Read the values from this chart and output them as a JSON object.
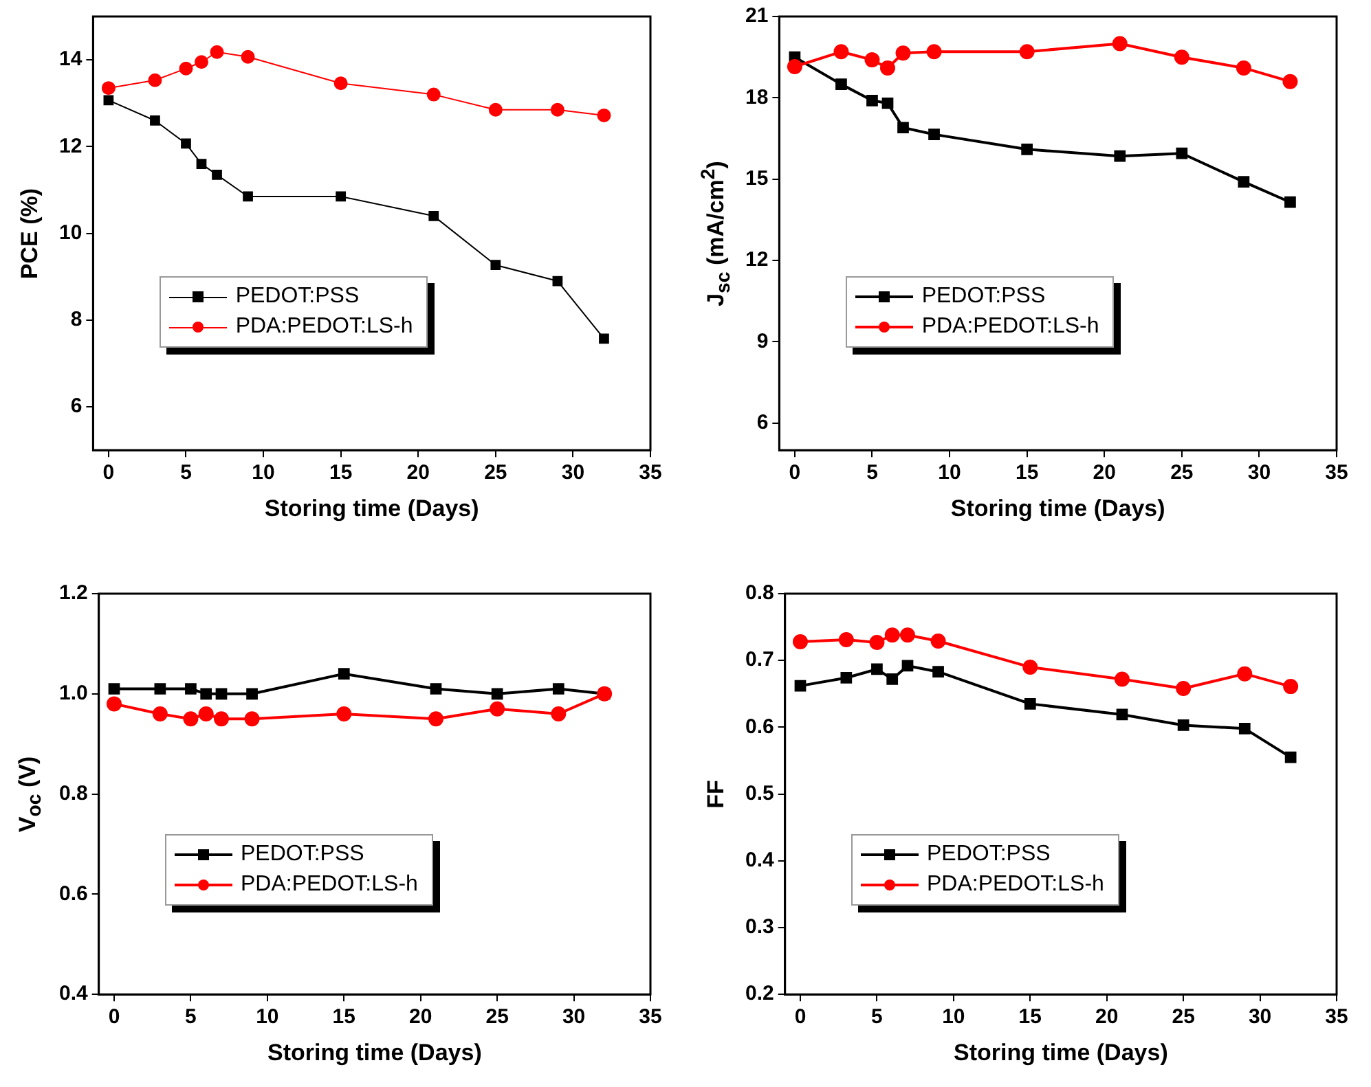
{
  "chart_data": [
    {
      "type": "line",
      "xlabel": "Storing time (Days)",
      "ylabel": "PCE (%)",
      "x": [
        0,
        3,
        5,
        6,
        7,
        9,
        15,
        21,
        25,
        29,
        32
      ],
      "xlim": [
        -1,
        35
      ],
      "xticks": [
        0,
        5,
        10,
        15,
        20,
        25,
        30,
        35
      ],
      "ylim": [
        5,
        15
      ],
      "yticks": [
        6,
        8,
        10,
        12,
        14
      ],
      "grid": false,
      "legend": "left",
      "series": [
        {
          "name": "PEDOT:PSS",
          "color": "#000000",
          "marker": "square",
          "values": [
            13.07,
            12.6,
            12.07,
            11.6,
            11.35,
            10.85,
            10.85,
            10.4,
            9.27,
            8.9,
            7.57
          ]
        },
        {
          "name": "PDA:PEDOT:LS-h",
          "color": "#ff0000",
          "marker": "circle",
          "values": [
            13.35,
            13.53,
            13.8,
            13.95,
            14.18,
            14.07,
            13.46,
            13.2,
            12.85,
            12.85,
            12.72
          ]
        }
      ]
    },
    {
      "type": "line",
      "xlabel": "Storing time (Days)",
      "ylabel": "J$_{sc}$ (mA/cm$^{2}$)",
      "x": [
        0,
        3,
        5,
        6,
        7,
        9,
        15,
        21,
        25,
        29,
        32
      ],
      "xlim": [
        -1,
        35
      ],
      "xticks": [
        0,
        5,
        10,
        15,
        20,
        25,
        30,
        35
      ],
      "ylim": [
        5,
        21
      ],
      "yticks": [
        6,
        9,
        12,
        15,
        18,
        21
      ],
      "grid": false,
      "legend": "left",
      "series": [
        {
          "name": "PEDOT:PSS",
          "color": "#000000",
          "marker": "square",
          "values": [
            19.5,
            18.5,
            17.9,
            17.8,
            16.9,
            16.65,
            16.1,
            15.85,
            15.95,
            14.9,
            14.15
          ]
        },
        {
          "name": "PDA:PEDOT:LS-h",
          "color": "#ff0000",
          "marker": "circle",
          "values": [
            19.15,
            19.7,
            19.4,
            19.1,
            19.65,
            19.7,
            19.7,
            20.0,
            19.5,
            19.1,
            18.6
          ]
        }
      ]
    },
    {
      "type": "line",
      "xlabel": "Storing time (Days)",
      "ylabel": "V$_{oc}$ (V)",
      "x": [
        0,
        3,
        5,
        6,
        7,
        9,
        15,
        21,
        25,
        29,
        32
      ],
      "xlim": [
        -1,
        35
      ],
      "xticks": [
        0,
        5,
        10,
        15,
        20,
        25,
        30,
        35
      ],
      "ylim": [
        0.4,
        1.2
      ],
      "yticks": [
        {
          "value": 0.4,
          "label": "0.4"
        },
        {
          "value": 0.6,
          "label": "0.6"
        },
        {
          "value": 0.8,
          "label": "0.8"
        },
        {
          "value": 1.0,
          "label": "1.0"
        },
        {
          "value": 1.2,
          "label": "1.2"
        }
      ],
      "grid": false,
      "legend": "left",
      "series": [
        {
          "name": "PEDOT:PSS",
          "color": "#000000",
          "marker": "square",
          "values": [
            1.01,
            1.01,
            1.01,
            1.0,
            1.0,
            1.0,
            1.04,
            1.01,
            1.0,
            1.01,
            1.0
          ]
        },
        {
          "name": "PDA:PEDOT:LS-h",
          "color": "#ff0000",
          "marker": "circle",
          "values": [
            0.98,
            0.96,
            0.95,
            0.96,
            0.95,
            0.95,
            0.96,
            0.95,
            0.97,
            0.96,
            1.0
          ]
        }
      ]
    },
    {
      "type": "line",
      "xlabel": "Storing time (Days)",
      "ylabel": "FF",
      "x": [
        0,
        3,
        5,
        6,
        7,
        9,
        15,
        21,
        25,
        29,
        32
      ],
      "xlim": [
        -1,
        35
      ],
      "xticks": [
        0,
        5,
        10,
        15,
        20,
        25,
        30,
        35
      ],
      "ylim": [
        0.2,
        0.8
      ],
      "yticks": [
        0.2,
        0.3,
        0.4,
        0.5,
        0.6,
        0.7,
        0.8
      ],
      "grid": false,
      "legend": "left",
      "series": [
        {
          "name": "PEDOT:PSS",
          "color": "#000000",
          "marker": "square",
          "values": [
            0.662,
            0.674,
            0.687,
            0.672,
            0.692,
            0.683,
            0.635,
            0.619,
            0.603,
            0.598,
            0.555
          ]
        },
        {
          "name": "PDA:PEDOT:LS-h",
          "color": "#ff0000",
          "marker": "circle",
          "values": [
            0.728,
            0.731,
            0.727,
            0.738,
            0.738,
            0.729,
            0.69,
            0.672,
            0.658,
            0.68,
            0.661
          ]
        }
      ]
    }
  ]
}
